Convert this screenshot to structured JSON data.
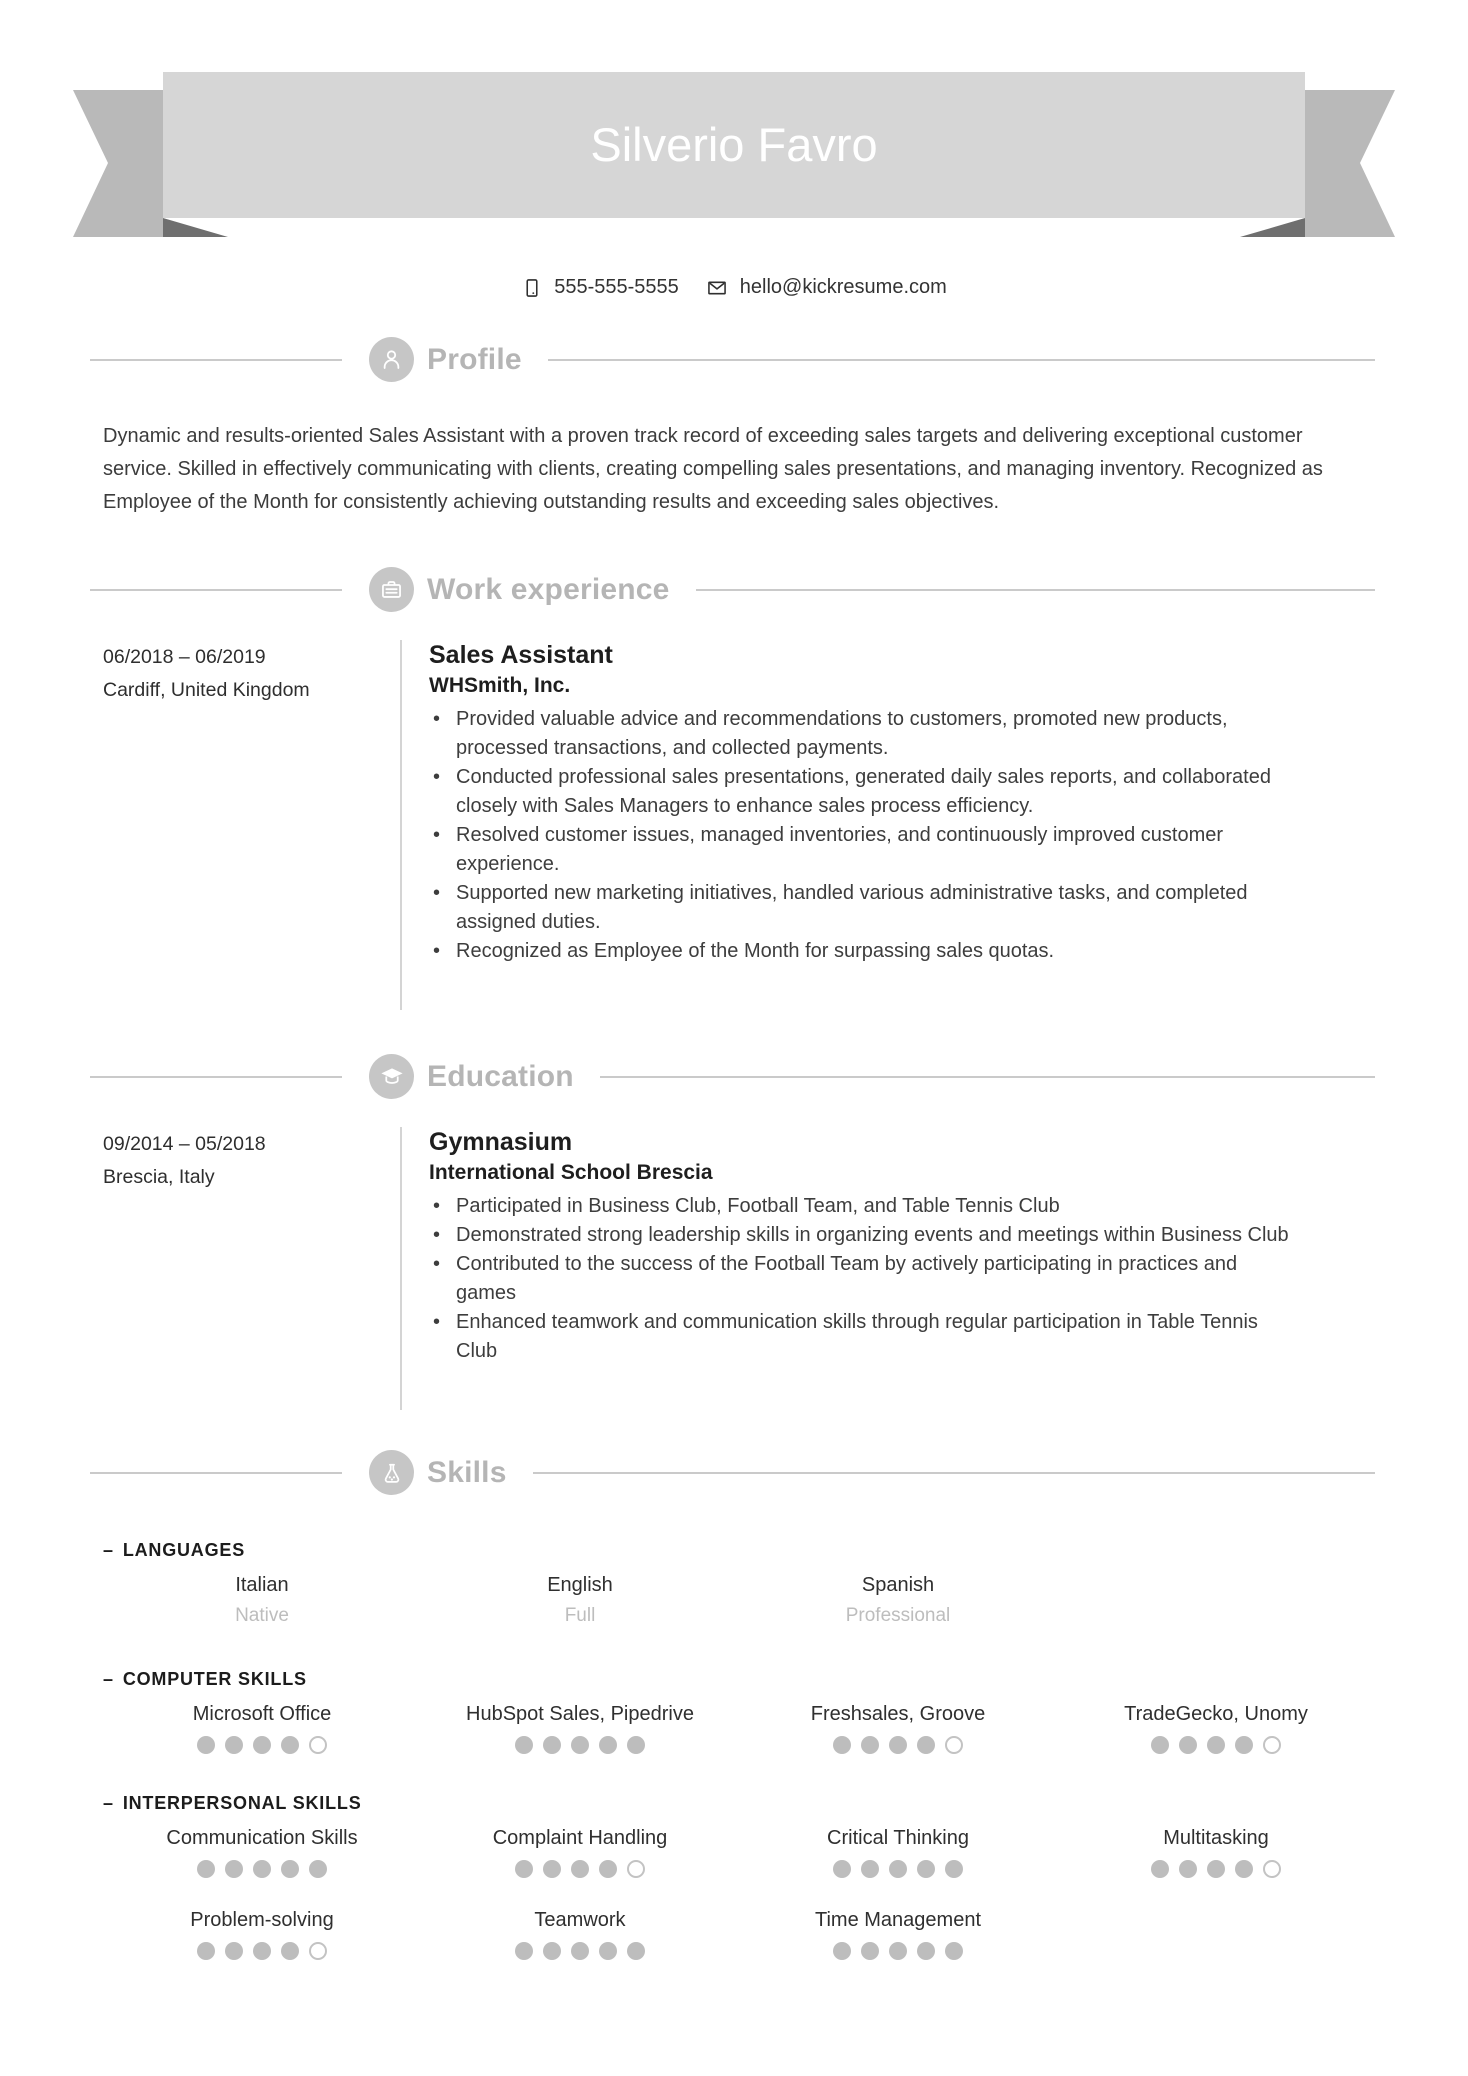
{
  "banner": {
    "name": "Silverio Favro"
  },
  "contact": {
    "phone": "555-555-5555",
    "email": "hello@kickresume.com"
  },
  "icons": {
    "profile": "person-icon",
    "work": "briefcase-icon",
    "education": "graduation-cap-icon",
    "skills": "flask-icon",
    "phone": "mobile-phone-icon",
    "email": "envelope-icon"
  },
  "colors": {
    "banner_fill": "#d6d6d6",
    "ribbon_tail": "#b9b9b9",
    "ribbon_fold": "#6f6f6f",
    "section_gray": "#b5b5b5",
    "icon_circle": "#c6c6c6",
    "line_gray": "#cacaca",
    "text_dark": "#3c3c3c",
    "heading_dark": "#1e1e1e",
    "dot_gray": "#bdbdbd"
  },
  "sections": {
    "profile": {
      "title": "Profile",
      "text": "Dynamic and results-oriented Sales Assistant with a proven track record of exceeding sales targets and delivering exceptional customer service. Skilled in effectively communicating with clients, creating compelling sales presentations, and managing inventory. Recognized as Employee of the Month for consistently achieving outstanding results and exceeding sales objectives."
    },
    "work": {
      "title": "Work experience",
      "entries": [
        {
          "dates": "06/2018 – 06/2019",
          "location": "Cardiff, United Kingdom",
          "title": "Sales Assistant",
          "subtitle": "WHSmith, Inc.",
          "bullets": [
            "Provided valuable advice and recommendations to customers, promoted new products, processed transactions, and collected payments.",
            "Conducted professional sales presentations, generated daily sales reports, and collaborated closely with Sales Managers to enhance sales process efficiency.",
            "Resolved customer issues, managed inventories, and continuously improved customer experience.",
            "Supported new marketing initiatives, handled various administrative tasks, and completed assigned duties.",
            "Recognized as Employee of the Month for surpassing sales quotas."
          ]
        }
      ]
    },
    "education": {
      "title": "Education",
      "entries": [
        {
          "dates": "09/2014 – 05/2018",
          "location": "Brescia, Italy",
          "title": "Gymnasium",
          "subtitle": "International School Brescia",
          "bullets": [
            "Participated in Business Club, Football Team, and Table Tennis Club",
            "Demonstrated strong leadership skills in organizing events and meetings within Business Club",
            "Contributed to the success of the Football Team by actively participating in practices and games",
            "Enhanced teamwork and communication skills through regular participation in Table Tennis Club"
          ]
        }
      ]
    },
    "skills": {
      "title": "Skills",
      "rating_max": 5,
      "groups": [
        {
          "prefix": "–",
          "label": "LANGUAGES",
          "items": [
            {
              "name": "Italian",
              "level_text": "Native"
            },
            {
              "name": "English",
              "level_text": "Full"
            },
            {
              "name": "Spanish",
              "level_text": "Professional"
            }
          ]
        },
        {
          "prefix": "–",
          "label": "COMPUTER SKILLS",
          "items": [
            {
              "name": "Microsoft Office",
              "rating": 4
            },
            {
              "name": "HubSpot Sales, Pipedrive",
              "rating": 5
            },
            {
              "name": "Freshsales, Groove",
              "rating": 4
            },
            {
              "name": "TradeGecko, Unomy",
              "rating": 4
            }
          ]
        },
        {
          "prefix": "–",
          "label": "INTERPERSONAL SKILLS",
          "items": [
            {
              "name": "Communication Skills",
              "rating": 5
            },
            {
              "name": "Complaint Handling",
              "rating": 4
            },
            {
              "name": "Critical Thinking",
              "rating": 5
            },
            {
              "name": "Multitasking",
              "rating": 4
            },
            {
              "name": "Problem-solving",
              "rating": 4
            },
            {
              "name": "Teamwork",
              "rating": 5
            },
            {
              "name": "Time Management",
              "rating": 5
            }
          ]
        }
      ]
    }
  }
}
